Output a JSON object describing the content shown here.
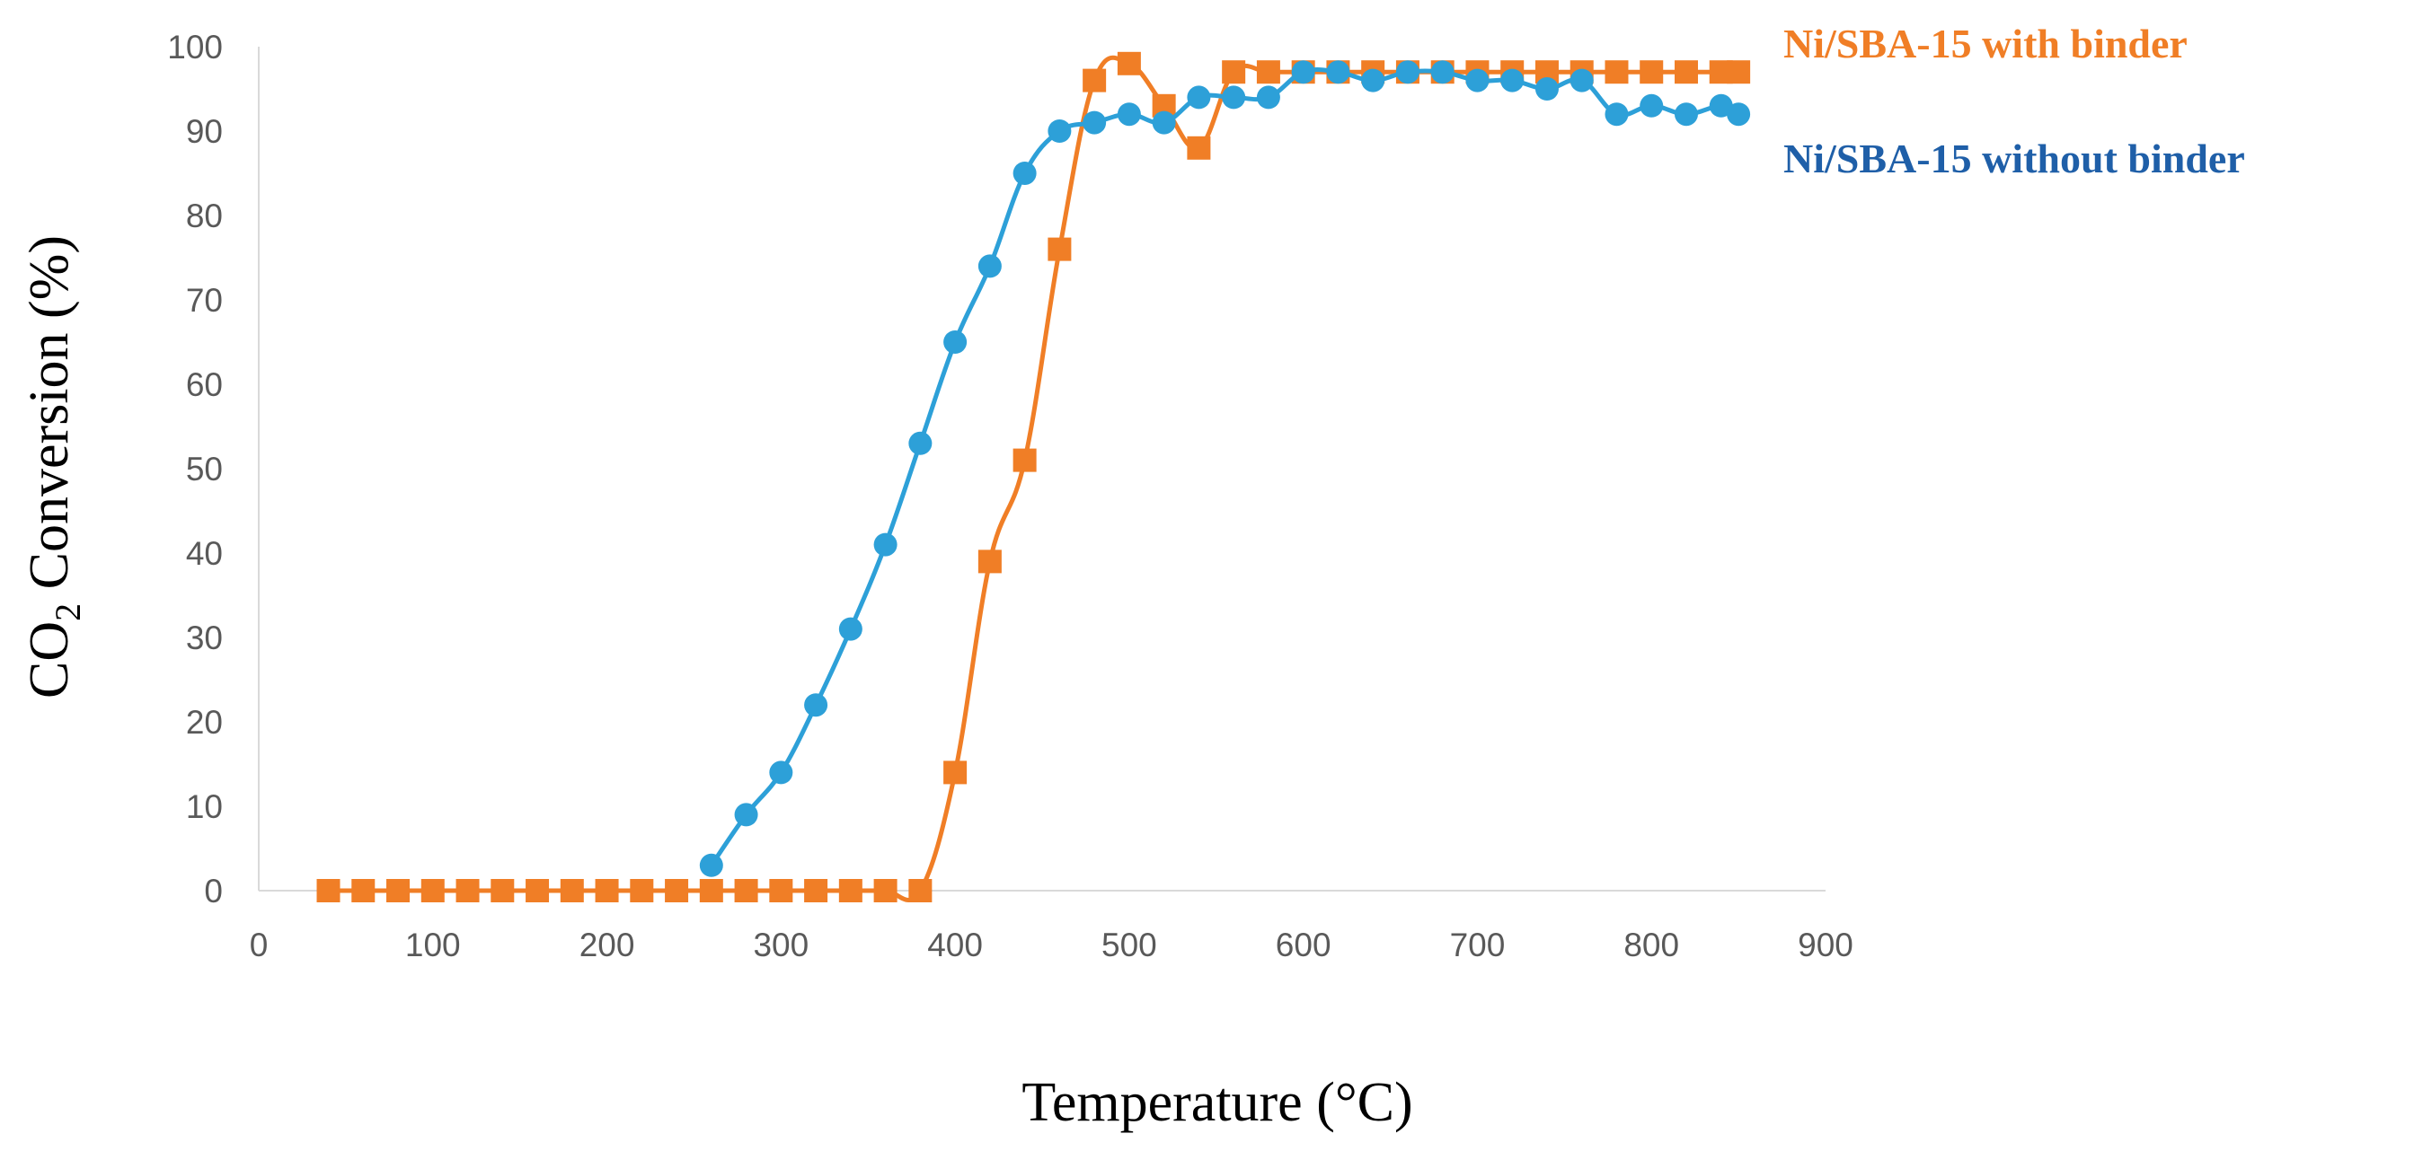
{
  "chart_data": {
    "type": "line",
    "title": "",
    "xlabel": "Temperature (°C)",
    "ylabel": {
      "prefix": "CO",
      "subscript": "2",
      "suffix": " Conversion (%)"
    },
    "xlim": [
      0,
      900
    ],
    "ylim": [
      0,
      100
    ],
    "xticks": [
      0,
      100,
      200,
      300,
      400,
      500,
      600,
      700,
      800,
      900
    ],
    "yticks": [
      0,
      10,
      20,
      30,
      40,
      50,
      60,
      70,
      80,
      90,
      100
    ],
    "grid": false,
    "legend_position": "right",
    "series": [
      {
        "name": "Ni/SBA-15 with binder",
        "color": "#F07E26",
        "marker": "square",
        "x": [
          40,
          60,
          80,
          100,
          120,
          140,
          160,
          180,
          200,
          220,
          240,
          260,
          280,
          300,
          320,
          340,
          360,
          380,
          400,
          420,
          440,
          460,
          480,
          500,
          520,
          540,
          560,
          580,
          600,
          620,
          640,
          660,
          680,
          700,
          720,
          740,
          760,
          780,
          800,
          820,
          840,
          850
        ],
        "y": [
          0,
          0,
          0,
          0,
          0,
          0,
          0,
          0,
          0,
          0,
          0,
          0,
          0,
          0,
          0,
          0,
          0,
          0,
          14,
          39,
          51,
          76,
          96,
          98,
          93,
          88,
          97,
          97,
          97,
          97,
          97,
          97,
          97,
          97,
          97,
          97,
          97,
          97,
          97,
          97,
          97,
          97
        ]
      },
      {
        "name": "Ni/SBA-15 without binder",
        "color": "#2DA0D8",
        "legend_color": "#1F5FA8",
        "marker": "circle",
        "x": [
          260,
          280,
          300,
          320,
          340,
          360,
          380,
          400,
          420,
          440,
          460,
          480,
          500,
          520,
          540,
          560,
          580,
          600,
          620,
          640,
          660,
          680,
          700,
          720,
          740,
          760,
          780,
          800,
          820,
          840,
          850
        ],
        "y": [
          3,
          9,
          14,
          22,
          31,
          41,
          53,
          65,
          74,
          85,
          90,
          91,
          92,
          91,
          94,
          94,
          94,
          97,
          97,
          96,
          97,
          97,
          96,
          96,
          95,
          96,
          92,
          93,
          92,
          93,
          92
        ]
      }
    ]
  }
}
